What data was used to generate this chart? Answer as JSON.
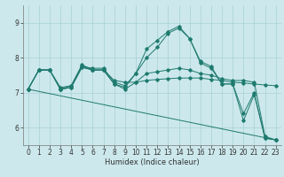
{
  "background_color": "#cce8ec",
  "grid_color": "#a8d0d4",
  "line_color": "#1e7a6e",
  "xlabel": "Humidex (Indice chaleur)",
  "xlim": [
    -0.5,
    23.5
  ],
  "ylim": [
    5.5,
    9.5
  ],
  "yticks": [
    6,
    7,
    8,
    9
  ],
  "xticks": [
    0,
    1,
    2,
    3,
    4,
    5,
    6,
    7,
    8,
    9,
    10,
    11,
    12,
    13,
    14,
    15,
    16,
    17,
    18,
    19,
    20,
    21,
    22,
    23
  ],
  "lines": [
    {
      "x": [
        0,
        23
      ],
      "y": [
        7.1,
        5.65
      ],
      "markers": false
    },
    {
      "x": [
        0,
        1,
        2,
        3,
        4,
        5,
        6,
        7,
        8,
        9,
        10,
        11,
        12,
        13,
        14,
        15,
        16,
        17,
        18,
        19,
        20,
        21,
        22,
        23
      ],
      "y": [
        7.1,
        7.65,
        7.65,
        7.15,
        7.2,
        7.75,
        7.7,
        7.7,
        7.3,
        7.2,
        7.55,
        8.25,
        8.5,
        8.75,
        8.9,
        8.55,
        7.9,
        7.75,
        7.25,
        7.25,
        6.2,
        6.95,
        5.7,
        5.65
      ],
      "markers": true
    },
    {
      "x": [
        0,
        1,
        2,
        3,
        4,
        5,
        6,
        7,
        8,
        9,
        10,
        11,
        12,
        13,
        14,
        15,
        16,
        17,
        18,
        19,
        20,
        21,
        22,
        23
      ],
      "y": [
        7.1,
        7.65,
        7.65,
        7.1,
        7.2,
        7.8,
        7.65,
        7.65,
        7.25,
        7.15,
        7.55,
        8.0,
        8.3,
        8.7,
        8.85,
        8.55,
        7.85,
        7.7,
        7.25,
        7.25,
        6.4,
        7.0,
        5.7,
        5.65
      ],
      "markers": true
    },
    {
      "x": [
        0,
        1,
        2,
        3,
        4,
        5,
        6,
        7,
        8,
        9,
        10,
        11,
        12,
        13,
        14,
        15,
        16,
        17,
        18,
        19,
        20,
        21,
        22,
        23
      ],
      "y": [
        7.1,
        7.65,
        7.65,
        7.1,
        7.15,
        7.75,
        7.65,
        7.65,
        7.25,
        7.1,
        7.3,
        7.55,
        7.6,
        7.65,
        7.7,
        7.65,
        7.55,
        7.5,
        7.4,
        7.35,
        7.35,
        7.3,
        5.75,
        5.65
      ],
      "markers": true
    },
    {
      "x": [
        0,
        1,
        2,
        3,
        4,
        5,
        6,
        7,
        8,
        9,
        10,
        11,
        12,
        13,
        14,
        15,
        16,
        17,
        18,
        19,
        20,
        21,
        22,
        23
      ],
      "y": [
        7.1,
        7.65,
        7.65,
        7.1,
        7.15,
        7.72,
        7.65,
        7.65,
        7.35,
        7.3,
        7.3,
        7.35,
        7.38,
        7.4,
        7.42,
        7.42,
        7.42,
        7.38,
        7.35,
        7.3,
        7.28,
        7.25,
        7.22,
        7.2
      ],
      "markers": true
    }
  ],
  "tick_labelsize": 5.5,
  "xlabel_fontsize": 6.0
}
